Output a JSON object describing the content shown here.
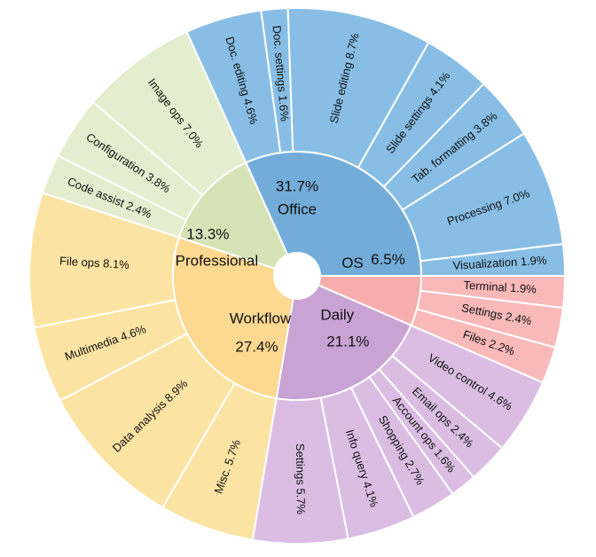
{
  "chart_data": {
    "type": "sunburst",
    "title": "",
    "categories": [
      {
        "name": "Office",
        "pct_label": "31.7%",
        "color": "#73acd8",
        "leaf_color": "#88bee5",
        "children": [
          {
            "label": "Visualization 1.9%",
            "value": 1.9
          },
          {
            "label": "Processing 7.0%",
            "value": 7.0
          },
          {
            "label": "Tab. formatting 3.8%",
            "value": 3.8
          },
          {
            "label": "Slide settings 4.1%",
            "value": 4.1
          },
          {
            "label": "Slide editing 8.7%",
            "value": 8.7
          },
          {
            "label": "Doc. settings 1.6%",
            "value": 1.6
          },
          {
            "label": "Doc. editing 4.6%",
            "value": 4.6
          }
        ]
      },
      {
        "name": "Professional",
        "pct_label": "13.3%",
        "color": "#d6e3b7",
        "leaf_color": "#e4edcd",
        "children": [
          {
            "label": "Image ops 7.0%",
            "value": 7.0
          },
          {
            "label": "Configuration 3.8%",
            "value": 3.8
          },
          {
            "label": "Code assist 2.4%",
            "value": 2.4
          }
        ]
      },
      {
        "name": "Workflow",
        "pct_label": "27.4%",
        "color": "#fcd891",
        "leaf_color": "#fbe3a3",
        "children": [
          {
            "label": "File ops 8.1%",
            "value": 8.1
          },
          {
            "label": "Multimedia 4.6%",
            "value": 4.6
          },
          {
            "label": "Data analysis 8.9%",
            "value": 8.9
          },
          {
            "label": "Misc. 5.7%",
            "value": 5.7
          }
        ]
      },
      {
        "name": "Daily",
        "pct_label": "21.1%",
        "color": "#c8a3d3",
        "leaf_color": "#dbbde3",
        "children": [
          {
            "label": "Settings 5.7%",
            "value": 5.7
          },
          {
            "label": "Info query 4.1%",
            "value": 4.1
          },
          {
            "label": "Shopping 2.7%",
            "value": 2.7
          },
          {
            "label": "Account ops 1.6%",
            "value": 1.6
          },
          {
            "label": "Email ops 2.4%",
            "value": 2.4
          },
          {
            "label": "Video control 4.6%",
            "value": 4.6
          }
        ]
      },
      {
        "name": "OS",
        "pct_label": "6.5%",
        "color": "#f6adab",
        "leaf_color": "#f8b9b8",
        "children": [
          {
            "label": "Files 2.2%",
            "value": 2.2
          },
          {
            "label": "Settings 2.4%",
            "value": 2.4
          },
          {
            "label": "Terminal 1.9%",
            "value": 1.9
          }
        ]
      }
    ]
  }
}
